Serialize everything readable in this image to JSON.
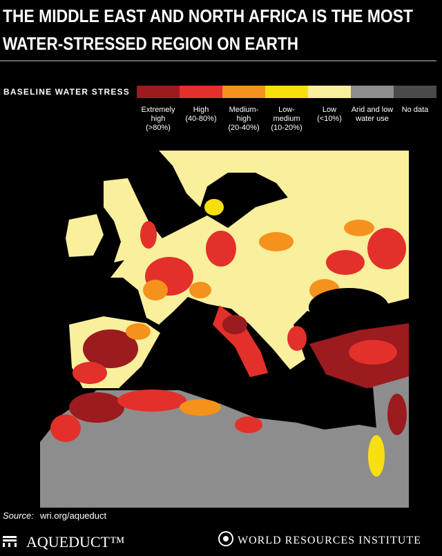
{
  "header": {
    "title_lines": [
      "THE MIDDLE EAST AND NORTH AFRICA IS THE MOST",
      "WATER-STRESSED REGION ON EARTH"
    ]
  },
  "legend": {
    "title": "BASELINE WATER STRESS",
    "items": [
      {
        "lines": [
          "Extremely",
          "high",
          "(>80%)"
        ],
        "color": "#9b1b1f"
      },
      {
        "lines": [
          "High",
          "(40-80%)"
        ],
        "color": "#e3302a"
      },
      {
        "lines": [
          "Medium-",
          "high",
          "(20-40%)"
        ],
        "color": "#f5921e"
      },
      {
        "lines": [
          "Low-",
          "medium",
          "(10-20%)"
        ],
        "color": "#f8df0f"
      },
      {
        "lines": [
          "Low",
          "(<10%)"
        ],
        "color": "#f9ef9c"
      },
      {
        "lines": [
          "Arid and low",
          "water use"
        ],
        "color": "#8d8d8d"
      },
      {
        "lines": [
          "No data"
        ],
        "color": "#4a4a4a"
      }
    ]
  },
  "source": {
    "label": "Source:",
    "text": "wri.org/aqueduct"
  },
  "footer": {
    "left": "AQUEDUCT™",
    "right": "WORLD RESOURCES INSTITUTE"
  }
}
